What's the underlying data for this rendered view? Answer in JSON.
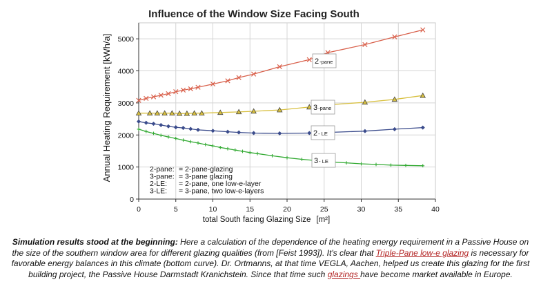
{
  "chart_data": {
    "type": "line",
    "title": "Influence of the Window Size Facing South",
    "xlabel": "total South facing Glazing Size",
    "xlabel_unit": "[m²]",
    "ylabel": "Annual Heating Requirement [kWh/a]",
    "xlim": [
      0,
      40
    ],
    "ylim": [
      0,
      5500
    ],
    "x_ticks": [
      "0",
      "5",
      "10",
      "15",
      "20",
      "25",
      "30",
      "35",
      "40"
    ],
    "y_ticks": [
      "0",
      "1000",
      "2000",
      "3000",
      "4000",
      "5000"
    ],
    "grid": true,
    "series": [
      {
        "name": "2-pane",
        "tag_main": "2",
        "tag_sub": "-pane",
        "color": "#d9614c",
        "marker": "x",
        "x": [
          0,
          1,
          2,
          3,
          4,
          5,
          6,
          7,
          8,
          10,
          12,
          13.5,
          15.5,
          19,
          23,
          25.5,
          30.5,
          34.5,
          38.3
        ],
        "y": [
          3080,
          3140,
          3190,
          3240,
          3290,
          3350,
          3400,
          3440,
          3490,
          3590,
          3690,
          3790,
          3900,
          4130,
          4350,
          4570,
          4820,
          5060,
          5280
        ]
      },
      {
        "name": "3-pane",
        "tag_main": "3",
        "tag_sub": "-pane",
        "color": "#d8c040",
        "marker": "triangle",
        "x": [
          0,
          1.5,
          2.5,
          3.5,
          4.5,
          5.5,
          6.5,
          7.5,
          8.5,
          11,
          13.5,
          15.5,
          19,
          23,
          25.5,
          30.5,
          34.5,
          38.3
        ],
        "y": [
          2680,
          2680,
          2680,
          2680,
          2680,
          2670,
          2670,
          2680,
          2680,
          2700,
          2720,
          2740,
          2780,
          2870,
          2940,
          3020,
          3110,
          3230
        ]
      },
      {
        "name": "2-LE",
        "tag_main": "2",
        "tag_sub": "- LE",
        "color": "#3b4c8c",
        "marker": "diamond",
        "x": [
          0,
          1,
          2,
          3,
          4,
          5,
          6,
          7,
          8,
          10,
          12,
          13.5,
          15.5,
          19,
          23,
          25.5,
          30.5,
          34.5,
          38.3
        ],
        "y": [
          2420,
          2380,
          2350,
          2310,
          2270,
          2240,
          2220,
          2190,
          2160,
          2130,
          2100,
          2080,
          2060,
          2050,
          2060,
          2080,
          2120,
          2180,
          2230
        ]
      },
      {
        "name": "3-LE",
        "tag_main": "3",
        "tag_sub": "- LE",
        "color": "#33aa33",
        "marker": "plus",
        "x": [
          0,
          1,
          2,
          3,
          4,
          5,
          6,
          7,
          8,
          9,
          10,
          11,
          12,
          13,
          14,
          15,
          16,
          18,
          20,
          22,
          24,
          26,
          28,
          30,
          32,
          34,
          36,
          38.3
        ],
        "y": [
          2180,
          2110,
          2050,
          1990,
          1940,
          1890,
          1840,
          1790,
          1750,
          1700,
          1660,
          1610,
          1570,
          1530,
          1490,
          1450,
          1420,
          1350,
          1290,
          1240,
          1200,
          1160,
          1130,
          1100,
          1080,
          1060,
          1050,
          1040
        ]
      }
    ],
    "legend": {
      "placement": "bottom-left",
      "entries": [
        {
          "key": "2-pane:",
          "value": "= 2-pane-glazing"
        },
        {
          "key": "3-pane:",
          "value": "= 3-pane glazing"
        },
        {
          "key": "2-LE:",
          "value": "= 2-pane, one low-e-layer"
        },
        {
          "key": "3-LE:",
          "value": "= 3-pane, two low-e-layers"
        }
      ]
    }
  },
  "caption": {
    "bold_intro": "Simulation results stood at the beginning:",
    "text_1": " Here a calculation of the dependence of the heating energy requirement in a Passive House on the size of the southern window area for different glazing qualities (from [Feist 1993]). It's clear that ",
    "link_1": "Triple-Pane low-e glazing",
    "text_2": " is necessary for favorable energy balances in this climate (bottom curve). Dr. Ortmanns, at that time VEGLA, Aachen, helped us create this glazing for the first building project, the Passive House Darmstadt Kranichstein. Since that time such ",
    "link_2": "glazings ",
    "text_3": "have become market available in Europe."
  }
}
